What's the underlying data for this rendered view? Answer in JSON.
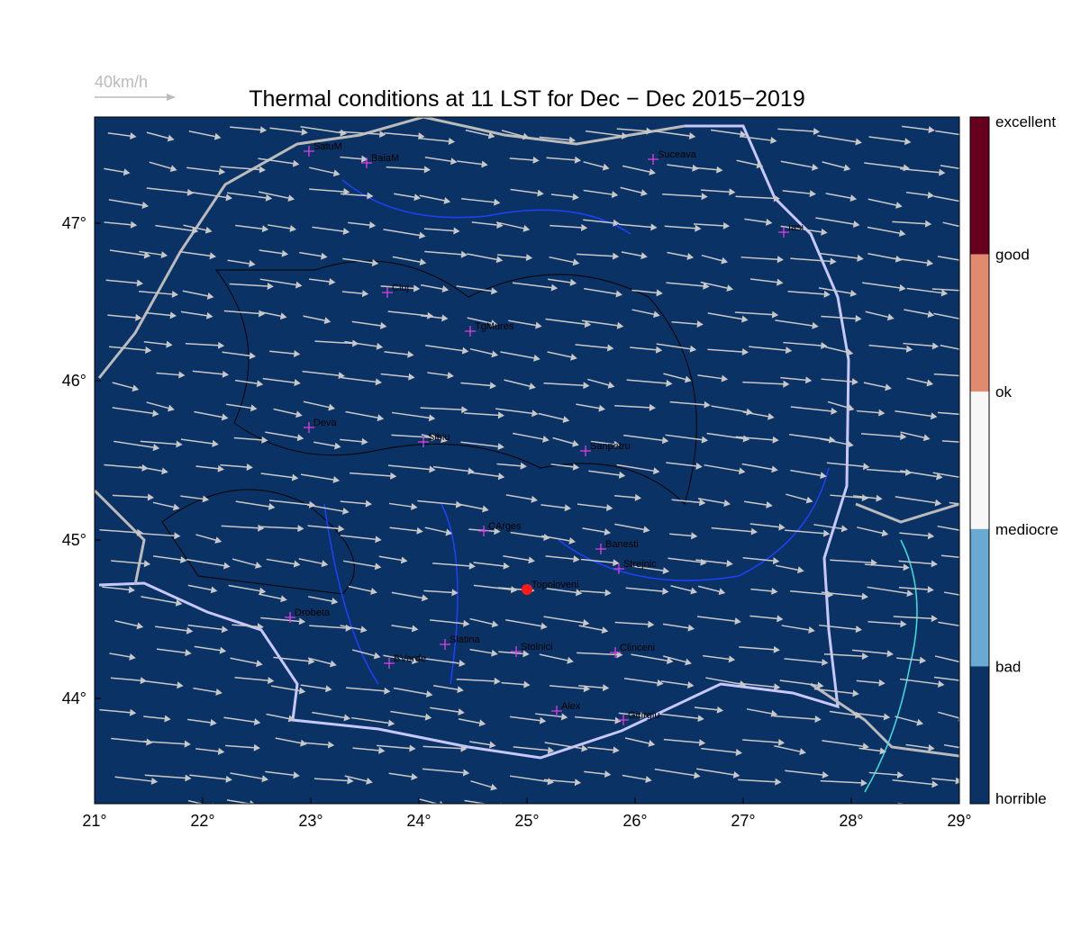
{
  "header": {
    "title": "Thermal conditions at 11 LST for Dec − Dec  2015−2019",
    "wind_scale": "40km/h"
  },
  "axes": {
    "lon_labels": [
      "21°",
      "22°",
      "23°",
      "24°",
      "25°",
      "26°",
      "27°",
      "28°",
      "29°"
    ],
    "lat_labels": [
      "47°",
      "46°",
      "45°",
      "44°"
    ]
  },
  "colorbar": {
    "labels": [
      "excellent",
      "good",
      "ok",
      "mediocre",
      "bad",
      "horrible"
    ]
  },
  "stations": [
    {
      "name": "SatuM"
    },
    {
      "name": "BaiaM"
    },
    {
      "name": "Suceava"
    },
    {
      "name": "Iasi"
    },
    {
      "name": "Cluj"
    },
    {
      "name": "TgMures"
    },
    {
      "name": "Deva"
    },
    {
      "name": "Sibiu"
    },
    {
      "name": "Sanpetru"
    },
    {
      "name": "CArges"
    },
    {
      "name": "Banesti"
    },
    {
      "name": "Strejnic"
    },
    {
      "name": "Topoloveni"
    },
    {
      "name": "Drobeta"
    },
    {
      "name": "Slatina"
    },
    {
      "name": "Stolnici"
    },
    {
      "name": "Clinceni"
    },
    {
      "name": "BVerde"
    },
    {
      "name": "Alex"
    },
    {
      "name": "Giurgiu"
    }
  ]
}
